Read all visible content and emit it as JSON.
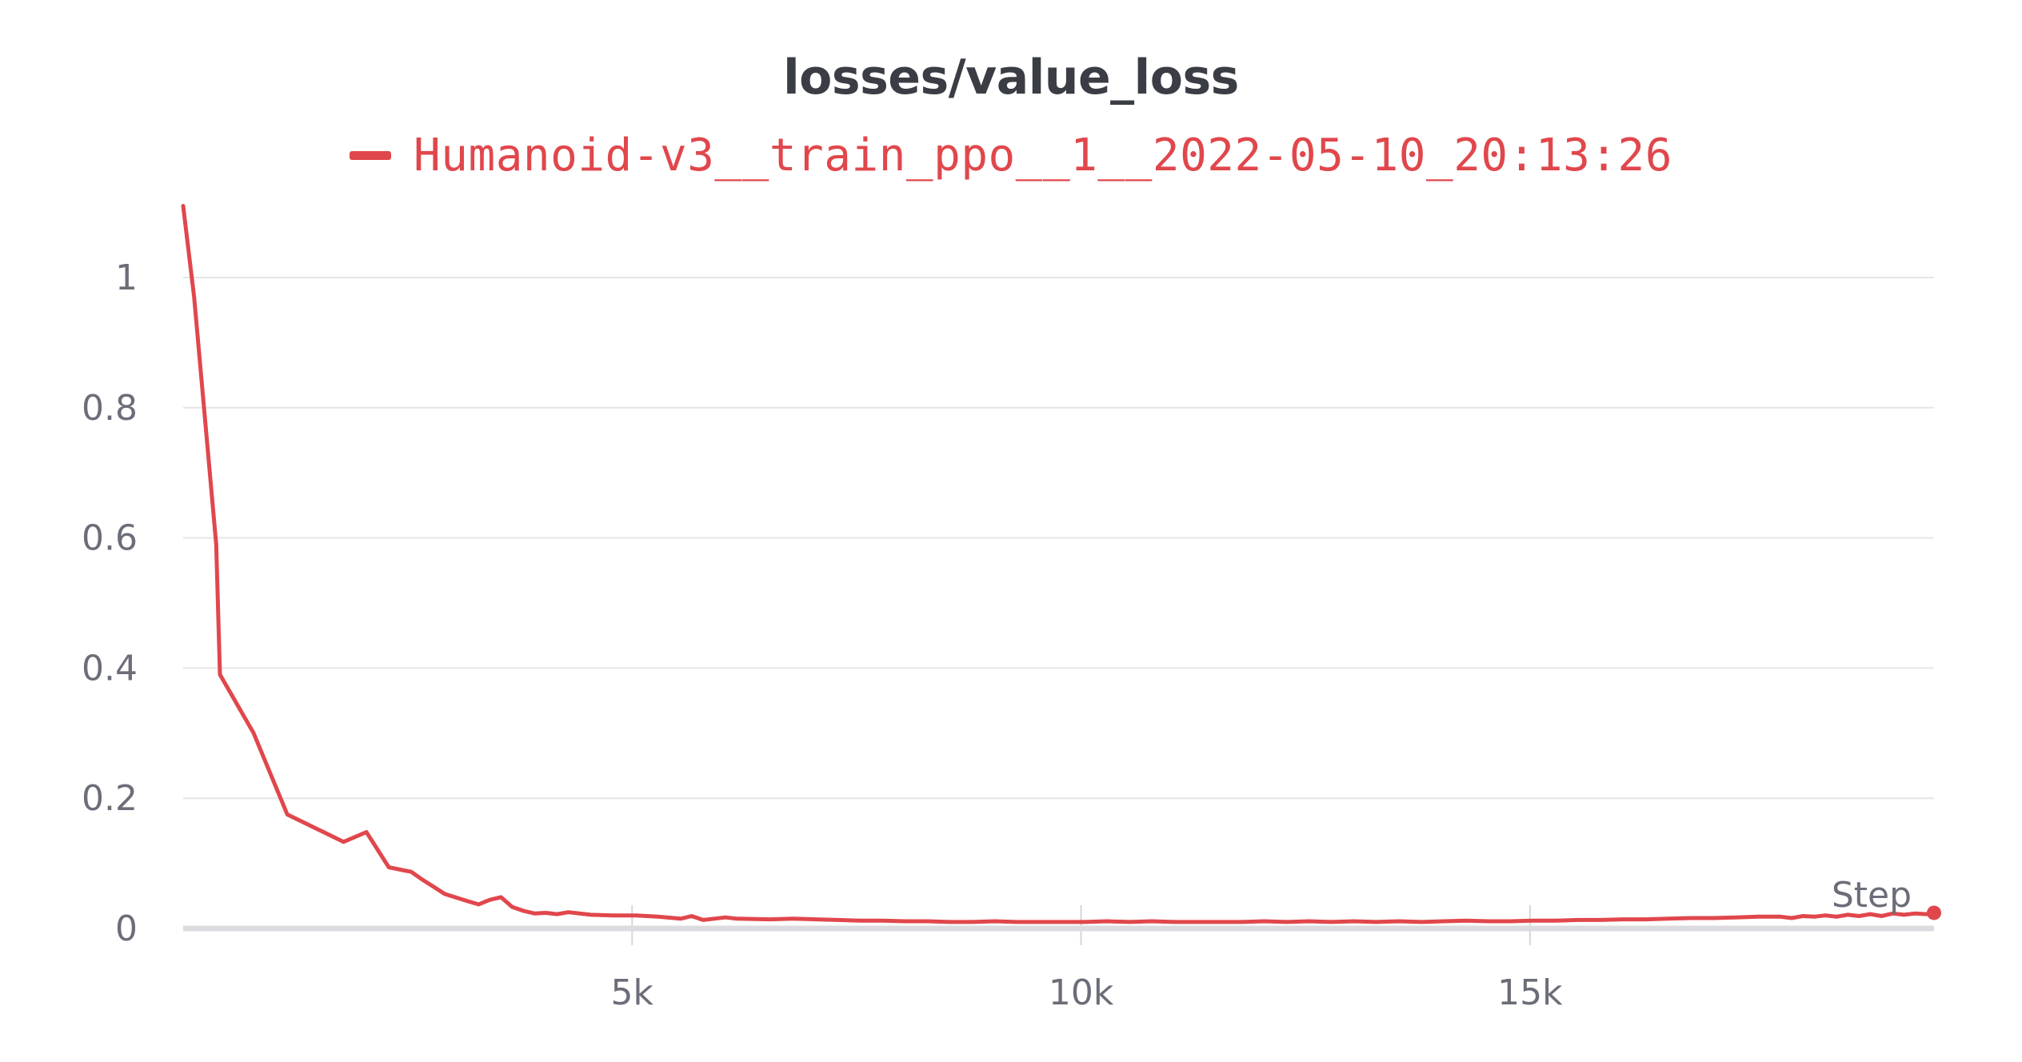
{
  "chart_data": {
    "type": "line",
    "title": "losses/value_loss",
    "xlabel": "Step",
    "ylabel": "",
    "xlim": [
      0,
      19500
    ],
    "ylim": [
      0,
      1.1
    ],
    "x_ticks": [
      5000,
      10000,
      15000
    ],
    "x_tick_labels": [
      "5k",
      "10k",
      "15k"
    ],
    "y_ticks": [
      0,
      0.2,
      0.4,
      0.6,
      0.8,
      1
    ],
    "y_tick_labels": [
      "0",
      "0.2",
      "0.4",
      "0.6",
      "0.8",
      "1"
    ],
    "grid": true,
    "legend_position": "top-center",
    "series": [
      {
        "name": "Humanoid-v3__train_ppo__1__2022-05-10_20:13:26",
        "color": "#e0474c",
        "points": [
          [
            0,
            1.11
          ],
          [
            122,
            0.97
          ],
          [
            368,
            0.59
          ],
          [
            410,
            0.39
          ],
          [
            785,
            0.3
          ],
          [
            1160,
            0.175
          ],
          [
            1787,
            0.133
          ],
          [
            2041,
            0.148
          ],
          [
            2290,
            0.094
          ],
          [
            2540,
            0.087
          ],
          [
            2664,
            0.075
          ],
          [
            2789,
            0.064
          ],
          [
            2914,
            0.053
          ],
          [
            3165,
            0.042
          ],
          [
            3290,
            0.037
          ],
          [
            3415,
            0.044
          ],
          [
            3540,
            0.048
          ],
          [
            3665,
            0.033
          ],
          [
            3790,
            0.027
          ],
          [
            3915,
            0.023
          ],
          [
            4040,
            0.024
          ],
          [
            4165,
            0.022
          ],
          [
            4290,
            0.025
          ],
          [
            4540,
            0.021
          ],
          [
            4790,
            0.02
          ],
          [
            5040,
            0.02
          ],
          [
            5290,
            0.018
          ],
          [
            5540,
            0.015
          ],
          [
            5665,
            0.019
          ],
          [
            5790,
            0.013
          ],
          [
            5915,
            0.015
          ],
          [
            6040,
            0.017
          ],
          [
            6165,
            0.015
          ],
          [
            6540,
            0.014
          ],
          [
            6790,
            0.015
          ],
          [
            7040,
            0.014
          ],
          [
            7290,
            0.013
          ],
          [
            7540,
            0.012
          ],
          [
            7790,
            0.012
          ],
          [
            8040,
            0.011
          ],
          [
            8290,
            0.011
          ],
          [
            8540,
            0.01
          ],
          [
            8790,
            0.01
          ],
          [
            9040,
            0.011
          ],
          [
            9290,
            0.01
          ],
          [
            9540,
            0.01
          ],
          [
            9790,
            0.01
          ],
          [
            10040,
            0.01
          ],
          [
            10290,
            0.011
          ],
          [
            10540,
            0.01
          ],
          [
            10790,
            0.011
          ],
          [
            11040,
            0.01
          ],
          [
            11290,
            0.01
          ],
          [
            11540,
            0.01
          ],
          [
            11790,
            0.01
          ],
          [
            12040,
            0.011
          ],
          [
            12290,
            0.01
          ],
          [
            12540,
            0.011
          ],
          [
            12790,
            0.01
          ],
          [
            13040,
            0.011
          ],
          [
            13290,
            0.01
          ],
          [
            13540,
            0.011
          ],
          [
            13790,
            0.01
          ],
          [
            14040,
            0.011
          ],
          [
            14290,
            0.012
          ],
          [
            14540,
            0.011
          ],
          [
            14790,
            0.011
          ],
          [
            15040,
            0.012
          ],
          [
            15290,
            0.012
          ],
          [
            15540,
            0.013
          ],
          [
            15790,
            0.013
          ],
          [
            16040,
            0.014
          ],
          [
            16290,
            0.014
          ],
          [
            16540,
            0.015
          ],
          [
            16790,
            0.016
          ],
          [
            17040,
            0.016
          ],
          [
            17290,
            0.017
          ],
          [
            17540,
            0.018
          ],
          [
            17790,
            0.018
          ],
          [
            17915,
            0.016
          ],
          [
            18040,
            0.019
          ],
          [
            18165,
            0.018
          ],
          [
            18290,
            0.02
          ],
          [
            18415,
            0.018
          ],
          [
            18540,
            0.021
          ],
          [
            18665,
            0.019
          ],
          [
            18790,
            0.022
          ],
          [
            18915,
            0.019
          ],
          [
            19040,
            0.023
          ],
          [
            19165,
            0.021
          ],
          [
            19290,
            0.023
          ],
          [
            19415,
            0.022
          ],
          [
            19500,
            0.024
          ]
        ]
      }
    ]
  }
}
